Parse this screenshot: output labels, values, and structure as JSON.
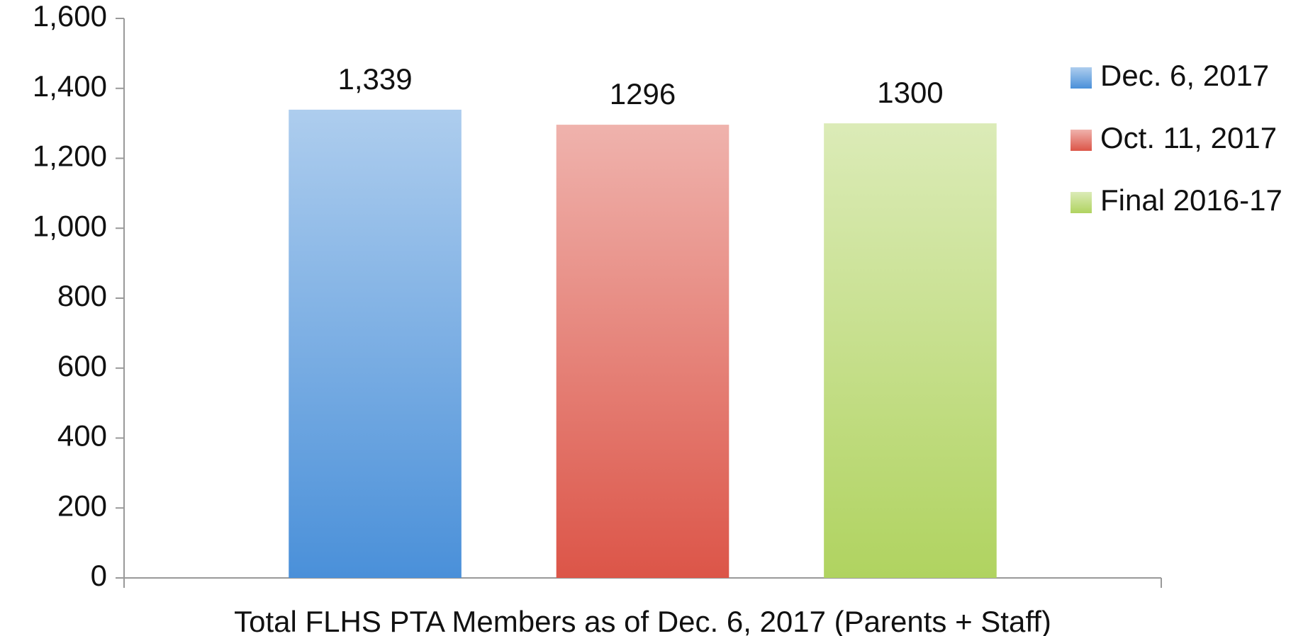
{
  "chart_data": {
    "type": "bar",
    "categories": [
      "Total FLHS PTA Members as of Dec. 6, 2017 (Parents + Staff)"
    ],
    "series": [
      {
        "name": "Dec. 6, 2017",
        "color": "#4a90d9",
        "values": [
          1339
        ],
        "value_labels": [
          "1,339"
        ]
      },
      {
        "name": "Oct. 11, 2017",
        "color": "#dc5548",
        "values": [
          1296
        ]
      },
      {
        "name": "Final 2016-17",
        "color": "#b0d360",
        "values": [
          1300
        ]
      }
    ],
    "ylim": [
      0,
      1600
    ],
    "yticks": [
      0,
      200,
      400,
      600,
      800,
      {
        "value": 1000,
        "label": "1,000"
      },
      {
        "value": 1200,
        "label": "1,200"
      },
      {
        "value": 1400,
        "label": "1,400"
      },
      {
        "value": 1600,
        "label": "1,600"
      }
    ],
    "grid": false,
    "legend": "right"
  }
}
